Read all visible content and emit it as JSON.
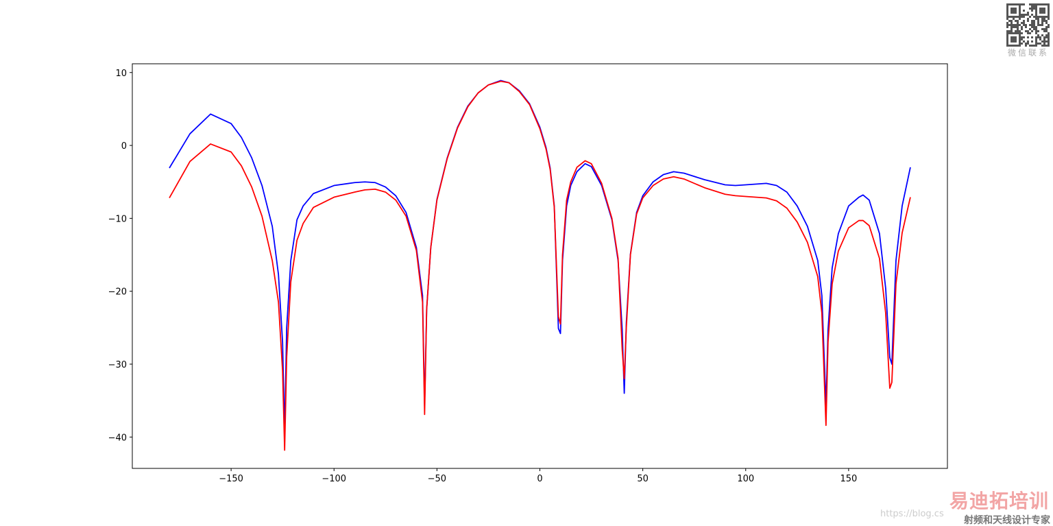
{
  "chart_data": {
    "type": "line",
    "x": [
      -180,
      -170,
      -160,
      -150,
      -145,
      -140,
      -135,
      -130,
      -127,
      -125,
      -124,
      -123,
      -121,
      -118,
      -115,
      -110,
      -100,
      -90,
      -85,
      -80,
      -75,
      -70,
      -65,
      -60,
      -57,
      -56,
      -55,
      -53,
      -50,
      -45,
      -40,
      -35,
      -30,
      -25,
      -19,
      -15,
      -10,
      -5,
      0,
      3,
      5,
      7,
      9,
      10,
      11,
      13,
      15,
      18,
      22,
      25,
      30,
      35,
      38,
      40,
      41,
      42,
      44,
      47,
      50,
      55,
      60,
      65,
      70,
      80,
      90,
      95,
      100,
      110,
      115,
      120,
      125,
      130,
      135,
      137,
      139,
      140,
      142,
      145,
      150,
      155,
      157,
      160,
      165,
      168,
      170,
      171,
      173,
      176,
      180
    ],
    "series": [
      {
        "color": "#0000ff",
        "values": [
          -3.1,
          1.6,
          4.3,
          3.0,
          1.1,
          -1.7,
          -5.5,
          -11.1,
          -17.7,
          -27,
          -39.4,
          -25,
          -15.8,
          -10.2,
          -8.3,
          -6.6,
          -5.5,
          -5.1,
          -5.0,
          -5.1,
          -5.7,
          -6.9,
          -9.2,
          -14,
          -20.6,
          -35.7,
          -22.5,
          -14,
          -7.4,
          -1.7,
          2.5,
          5.4,
          7.2,
          8.3,
          8.9,
          8.6,
          7.5,
          5.7,
          2.5,
          -0.3,
          -3.1,
          -8.3,
          -25.1,
          -25.8,
          -15.8,
          -8.3,
          -5.5,
          -3.6,
          -2.5,
          -2.9,
          -5.5,
          -10.2,
          -15.8,
          -25.3,
          -34,
          -24.3,
          -14.9,
          -9.2,
          -6.9,
          -5.0,
          -4.0,
          -3.6,
          -3.8,
          -4.7,
          -5.4,
          -5.5,
          -5.4,
          -5.2,
          -5.5,
          -6.4,
          -8.3,
          -11.1,
          -15.8,
          -20.6,
          -35.7,
          -25.3,
          -16.8,
          -12.1,
          -8.3,
          -7.1,
          -6.8,
          -7.5,
          -12.1,
          -19.6,
          -29.1,
          -30,
          -15.8,
          -8.3,
          -3.0
        ]
      },
      {
        "color": "#ff0000",
        "values": [
          -7.2,
          -2.2,
          0.2,
          -0.9,
          -2.8,
          -5.7,
          -9.7,
          -15.8,
          -21.5,
          -30.9,
          -41.8,
          -29,
          -18.7,
          -13,
          -10.7,
          -8.5,
          -7.1,
          -6.4,
          -6.1,
          -6.0,
          -6.4,
          -7.5,
          -9.7,
          -14.4,
          -21.5,
          -36.9,
          -22.5,
          -14,
          -7.5,
          -1.8,
          2.4,
          5.3,
          7.2,
          8.3,
          8.8,
          8.6,
          7.4,
          5.6,
          2.3,
          -0.5,
          -3.3,
          -8.5,
          -23.5,
          -24.5,
          -15,
          -7.5,
          -5.0,
          -3.0,
          -2.1,
          -2.5,
          -5.2,
          -10,
          -15.5,
          -28,
          -32,
          -25,
          -15,
          -9.4,
          -7.2,
          -5.5,
          -4.6,
          -4.3,
          -4.6,
          -5.8,
          -6.7,
          -6.9,
          -7.0,
          -7.2,
          -7.6,
          -8.6,
          -10.5,
          -13.3,
          -18,
          -23,
          -38.4,
          -27,
          -19,
          -14.5,
          -11.3,
          -10.3,
          -10.3,
          -11.0,
          -15.5,
          -23,
          -33.3,
          -32.5,
          -19,
          -12,
          -7.1
        ]
      }
    ],
    "xlim": [
      -198,
      198
    ],
    "xticks": [
      {
        "value": -150,
        "label": "−150"
      },
      {
        "value": -100,
        "label": "−100"
      },
      {
        "value": -50,
        "label": "−50"
      },
      0,
      50,
      100,
      150
    ],
    "ylim": [
      -44.3,
      11.2
    ],
    "yticks": [
      10,
      0,
      {
        "value": -10,
        "label": "−10"
      },
      {
        "value": -20,
        "label": "−20"
      },
      {
        "value": -30,
        "label": "−30"
      },
      {
        "value": -40,
        "label": "−40"
      }
    ]
  },
  "watermark": {
    "qr_caption": "微信联系",
    "brand": "易迪拓培训",
    "slogan": "射频和天线设计专家",
    "url": "https://blog.cs"
  }
}
